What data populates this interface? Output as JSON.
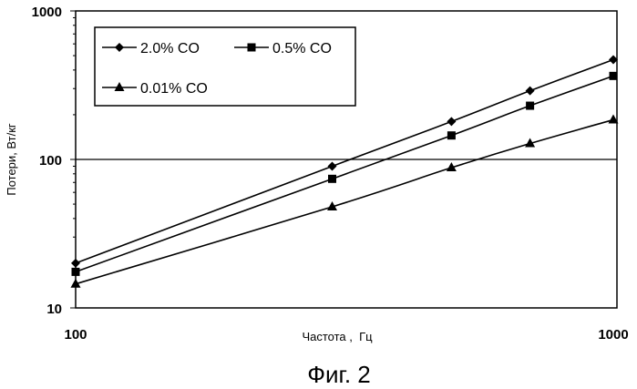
{
  "chart_data": {
    "type": "line",
    "caption": "Фиг. 2",
    "xlabel": "Частота ,  Гц",
    "ylabel": "Потери, Вт/кг",
    "x_scale": "log",
    "y_scale": "log",
    "xlim": [
      100,
      1000
    ],
    "ylim": [
      10,
      1000
    ],
    "x_tick_labels": [
      "100",
      "1000"
    ],
    "y_tick_labels": [
      "10",
      "100",
      "1000"
    ],
    "gridlines": "horizontal",
    "legend": "top-left",
    "series": [
      {
        "name": "2.0% CO",
        "marker": "diamond",
        "x": [
          100,
          300,
          500,
          700,
          1000
        ],
        "y": [
          20,
          90,
          180,
          290,
          470
        ]
      },
      {
        "name": "0.5% CO",
        "marker": "square",
        "x": [
          100,
          300,
          500,
          700,
          1000
        ],
        "y": [
          17.5,
          74,
          145,
          230,
          365
        ]
      },
      {
        "name": "0.01% CO",
        "marker": "triangle",
        "x": [
          100,
          300,
          500,
          700,
          1000
        ],
        "y": [
          14.5,
          48,
          88,
          128,
          185
        ]
      }
    ]
  }
}
